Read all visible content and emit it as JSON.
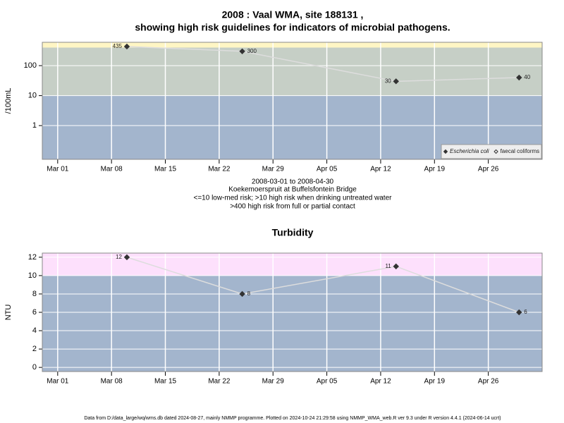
{
  "chart_data": [
    {
      "type": "line",
      "title": [
        "2008 : Vaal WMA, site 188131 ,",
        "showing high risk guidelines for indicators of microbial pathogens."
      ],
      "subtitle": [
        "2008-03-01 to 2008-04-30",
        "Koekemoerspruit at Buffelsfontein Bridge",
        "<=10 low-med risk; >10 high risk when drinking untreated water",
        ">400 high risk from full or partial contact"
      ],
      "ylabel": "/100mL",
      "ylog": true,
      "ylim": [
        0.075,
        600
      ],
      "yticks": [
        1,
        10,
        100
      ],
      "xlim": [
        "Feb 27",
        "May 03"
      ],
      "xticks": [
        "Mar 01",
        "Mar 08",
        "Mar 15",
        "Mar 22",
        "Mar 29",
        "Apr 05",
        "Apr 12",
        "Apr 19",
        "Apr 26"
      ],
      "x": [
        "Mar 10",
        "Mar 25",
        "Apr 14",
        "Apr 30"
      ],
      "series": [
        {
          "name": "Escherichia coli",
          "color": "#333333",
          "line_color": "#dddddd",
          "marker": "filled",
          "values": [
            435,
            300,
            30,
            40
          ]
        },
        {
          "name": "faecal coliforms",
          "color": "#333333",
          "line_color": "#dddddd",
          "marker": "open",
          "values": [
            null,
            null,
            null,
            null
          ]
        }
      ],
      "risk_bands": {
        "thresholds": [
          10,
          400
        ],
        "colors": [
          "#a3b5cd",
          "#c6cfc6",
          "#fff6c4"
        ]
      },
      "grid": true,
      "legend": "bottom-right"
    },
    {
      "type": "line",
      "title": [
        "Turbidity"
      ],
      "ylabel": "NTU",
      "ylog": false,
      "ylim": [
        -0.45,
        12.45
      ],
      "yticks": [
        0,
        2,
        4,
        6,
        8,
        10,
        12
      ],
      "xlim": [
        "Feb 27",
        "May 03"
      ],
      "xticks": [
        "Mar 01",
        "Mar 08",
        "Mar 15",
        "Mar 22",
        "Mar 29",
        "Apr 05",
        "Apr 12",
        "Apr 19",
        "Apr 26"
      ],
      "x": [
        "Mar 10",
        "Mar 25",
        "Apr 14",
        "Apr 30"
      ],
      "series": [
        {
          "color": "#333333",
          "line_color": "#dddddd",
          "marker": "filled",
          "values": [
            12,
            8,
            11,
            6
          ]
        }
      ],
      "risk_bands": {
        "thresholds": [
          10
        ],
        "colors": [
          "#a3b5cd",
          "#fde0fc"
        ]
      },
      "grid": true
    }
  ],
  "footer": "Data from D:/data_large/wq/wms.db dated 2024-08-27, mainly NMMP programme. Plotted on 2024-10-24 21:29:58 using NMMP_WMA_web.R ver 9.3 under R version 4.4.1 (2024-06-14 ucrt)"
}
